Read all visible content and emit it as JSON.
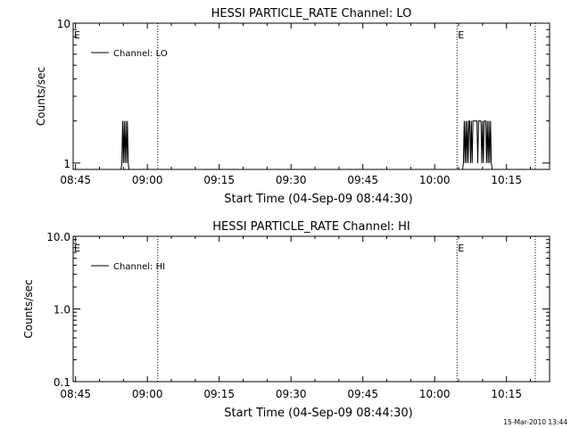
{
  "footer_timestamp": "15-Mar-2010 13:44",
  "chart_data": [
    {
      "type": "line",
      "title": "HESSI PARTICLE_RATE Channel: LO",
      "xlabel": "Start Time (04-Sep-09 08:44:30)",
      "ylabel": "Counts/sec",
      "x_ticks": [
        "08:45",
        "09:00",
        "09:15",
        "09:30",
        "09:45",
        "10:00",
        "10:15"
      ],
      "y_scale": "log",
      "ylim": [
        0.9,
        10
      ],
      "y_ticks": [
        "1",
        "10"
      ],
      "xlim": [
        "08:44:30",
        "10:24:00"
      ],
      "legend": {
        "placement": "top-left",
        "entries": [
          "Channel: LO"
        ]
      },
      "markers": [
        {
          "label": "E",
          "time": "08:44:30",
          "line": false
        },
        {
          "label": "",
          "time": "09:02:10",
          "line": true
        },
        {
          "label": "E",
          "time": "10:04:40",
          "line": true
        },
        {
          "label": "",
          "time": "10:21:00",
          "line": true
        }
      ],
      "series": [
        {
          "name": "Channel: LO",
          "x": [
            "08:44:30",
            "08:54:30",
            "08:54:40",
            "08:54:50",
            "08:55:00",
            "08:55:10",
            "08:55:20",
            "08:55:30",
            "08:55:40",
            "08:55:50",
            "08:56:00",
            "08:56:10",
            "10:05:50",
            "10:06:00",
            "10:06:10",
            "10:06:20",
            "10:06:30",
            "10:06:40",
            "10:06:50",
            "10:07:00",
            "10:07:10",
            "10:07:20",
            "10:07:30",
            "10:07:40",
            "10:07:50",
            "10:08:00",
            "10:08:10",
            "10:08:20",
            "10:08:30",
            "10:08:40",
            "10:08:50",
            "10:09:00",
            "10:09:10",
            "10:09:30",
            "10:09:40",
            "10:09:50",
            "10:10:00",
            "10:10:10",
            "10:10:20",
            "10:10:40",
            "10:10:50",
            "10:11:00",
            "10:11:10",
            "10:11:20",
            "10:11:30",
            "10:11:40",
            "10:11:50",
            "10:12:00",
            "10:24:00"
          ],
          "y": [
            0.9,
            0.9,
            1,
            2,
            1,
            2,
            1,
            2,
            1,
            2,
            1,
            0.9,
            0.9,
            1,
            2,
            1,
            2,
            1,
            2,
            1,
            2,
            2,
            1,
            2,
            1,
            2,
            2,
            2,
            2,
            2,
            2,
            1,
            2,
            2,
            2,
            1,
            2,
            1,
            2,
            2,
            1,
            2,
            1,
            2,
            1,
            2,
            1,
            0.9,
            0.9
          ]
        }
      ]
    },
    {
      "type": "line",
      "title": "HESSI PARTICLE_RATE Channel: HI",
      "xlabel": "Start Time (04-Sep-09 08:44:30)",
      "ylabel": "Counts/sec",
      "x_ticks": [
        "08:45",
        "09:00",
        "09:15",
        "09:30",
        "09:45",
        "10:00",
        "10:15"
      ],
      "y_scale": "log",
      "ylim": [
        0.1,
        10
      ],
      "y_ticks": [
        "0.1",
        "1.0",
        "10.0"
      ],
      "xlim": [
        "08:44:30",
        "10:24:00"
      ],
      "legend": {
        "placement": "top-left",
        "entries": [
          "Channel: HI"
        ]
      },
      "markers": [
        {
          "label": "E",
          "time": "08:44:30",
          "line": false
        },
        {
          "label": "",
          "time": "09:02:10",
          "line": true
        },
        {
          "label": "E",
          "time": "10:04:40",
          "line": true
        },
        {
          "label": "",
          "time": "10:21:00",
          "line": true
        }
      ],
      "series": [
        {
          "name": "Channel: HI",
          "x": [],
          "y": []
        }
      ]
    }
  ]
}
